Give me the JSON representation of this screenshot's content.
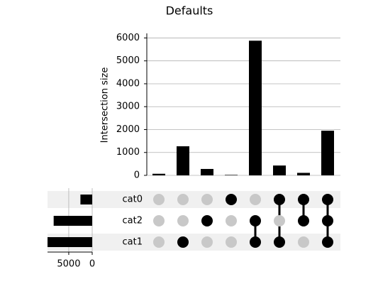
{
  "chart_data": {
    "type": "upset",
    "title": "Defaults",
    "ylabel": "Intersection size",
    "ylim": [
      0,
      6200
    ],
    "yticks": [
      0,
      1000,
      2000,
      3000,
      4000,
      5000,
      6000
    ],
    "grid": true,
    "bar_color": "#000000",
    "dot_on_color": "#000000",
    "dot_off_color": "#c8c8c8",
    "row_shade_color": "#f0f0f0",
    "intersections": {
      "values": [
        70,
        1270,
        280,
        20,
        5880,
        430,
        110,
        1950
      ],
      "members": [
        [],
        [
          2
        ],
        [
          1
        ],
        [
          0
        ],
        [
          1,
          2
        ],
        [
          0,
          2
        ],
        [
          0,
          1
        ],
        [
          0,
          1,
          2
        ]
      ]
    },
    "sets": {
      "categories": [
        "cat0",
        "cat2",
        "cat1"
      ],
      "values": [
        2510,
        8220,
        9530
      ],
      "xlim": [
        9530,
        0
      ],
      "xticks": [
        5000,
        0
      ]
    }
  }
}
